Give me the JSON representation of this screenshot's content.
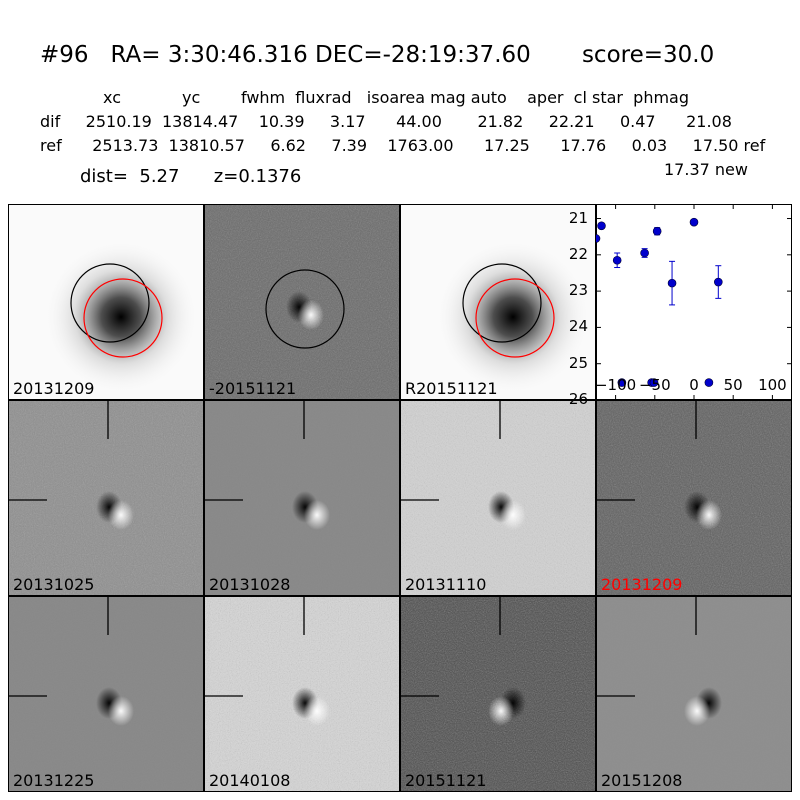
{
  "header": {
    "title": "#96   RA= 3:30:46.316 DEC=-28:19:37.60       score=30.0",
    "columns": "xc            yc        fwhm  fluxrad   isoarea mag auto    aper  cl star  phmag",
    "dif_row": "dif     2510.19  13814.47    10.39     3.17      44.00       21.82     22.21     0.47      21.08",
    "ref_row": "ref      2513.73  13810.57     6.62     7.39    1763.00      17.25      17.76     0.03     17.50 ref",
    "new_row": "17.37 new",
    "dist_row": "dist=  5.27      z=0.1376"
  },
  "panels": [
    {
      "label": "20131209",
      "kind": "galaxy",
      "label_color": "#000000"
    },
    {
      "label": "-20151121",
      "kind": "diffcircle",
      "label_color": "#000000"
    },
    {
      "label": "R20151121",
      "kind": "galaxy",
      "label_color": "#000000"
    },
    {
      "label": "20131025",
      "kind": "stamp",
      "label_color": "#000000"
    },
    {
      "label": "20131028",
      "kind": "stamp",
      "label_color": "#000000"
    },
    {
      "label": "20131110",
      "kind": "stamp",
      "label_color": "#000000"
    },
    {
      "label": "20131209",
      "kind": "stamp",
      "label_color": "#ff0000"
    },
    {
      "label": "20131225",
      "kind": "stamp",
      "label_color": "#000000"
    },
    {
      "label": "20140108",
      "kind": "stamp",
      "label_color": "#000000"
    },
    {
      "label": "20151121",
      "kind": "stamp",
      "label_color": "#000000"
    },
    {
      "label": "20151208",
      "kind": "stamp",
      "label_color": "#000000"
    }
  ],
  "chart_data": {
    "type": "scatter",
    "title": "",
    "xlabel": "",
    "ylabel": "",
    "xlim": [
      -125,
      125
    ],
    "ylim": [
      26,
      20.6
    ],
    "y_inverted": true,
    "xticks": [
      -100,
      -50,
      0,
      50,
      100
    ],
    "xtick_labels": [
      "−100",
      "−50",
      "0",
      "50",
      "100"
    ],
    "yticks": [
      21,
      22,
      23,
      24,
      25,
      26
    ],
    "marker_color": "#0000cc",
    "points": [
      {
        "x": -125,
        "y": 21.55,
        "err": 0.0
      },
      {
        "x": -118,
        "y": 21.2,
        "err": 0.06
      },
      {
        "x": -98,
        "y": 22.15,
        "err": 0.2
      },
      {
        "x": -92,
        "y": 25.52,
        "err": 0.05
      },
      {
        "x": -63,
        "y": 21.95,
        "err": 0.12
      },
      {
        "x": -54,
        "y": 25.52,
        "err": 0.05
      },
      {
        "x": -51,
        "y": 25.52,
        "err": 0.05
      },
      {
        "x": -47,
        "y": 21.35,
        "err": 0.1
      },
      {
        "x": -28,
        "y": 22.78,
        "err": 0.6
      },
      {
        "x": 0,
        "y": 21.1,
        "err": 0.07
      },
      {
        "x": 19,
        "y": 25.52,
        "err": 0.05
      },
      {
        "x": 31,
        "y": 22.75,
        "err": 0.45
      }
    ]
  }
}
